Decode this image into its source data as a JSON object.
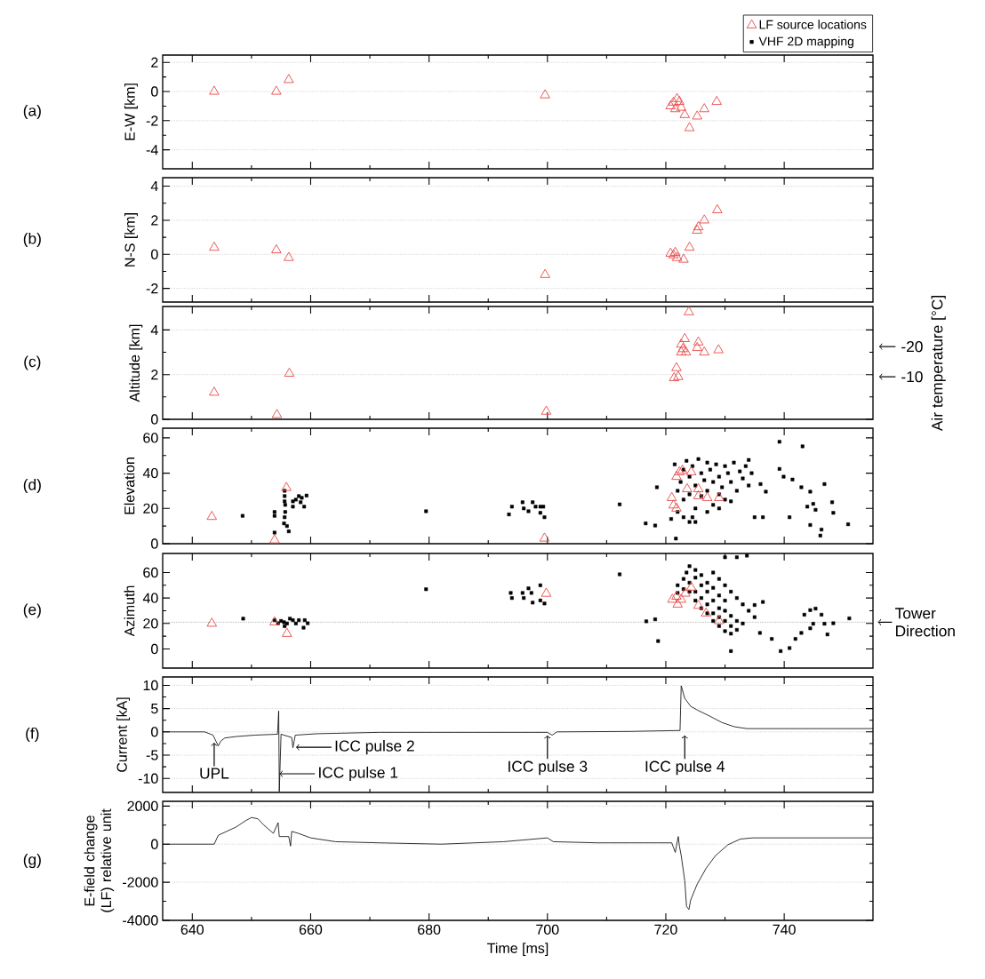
{
  "chart_data": [
    {
      "type": "scatter",
      "ylabel": "E-W [km]",
      "xlim": [
        635,
        755
      ],
      "xticks": [
        640,
        660,
        680,
        700,
        720,
        740
      ],
      "ylim": [
        -5.3,
        2.5
      ],
      "yticks": [
        -4,
        -2,
        0,
        2
      ],
      "grid": "y",
      "tick_labels": "y",
      "annotations": [
        "(a)"
      ],
      "series": [
        {
          "color": "#e8504f",
          "marker": "triangle",
          "x": [
            643.7,
            654.2,
            656.3,
            699.6,
            720.8,
            721.3,
            721.6,
            721.9,
            722.3,
            722.6,
            723.2,
            724.0,
            725.3,
            726.5,
            728.6
          ],
          "values": [
            0,
            0,
            0.8,
            -0.25,
            -1.0,
            -0.75,
            -1.2,
            -0.5,
            -0.7,
            -1.1,
            -1.6,
            -2.5,
            -1.7,
            -1.2,
            -0.7
          ]
        }
      ]
    },
    {
      "type": "scatter",
      "ylabel": "N-S [km]",
      "xlim": [
        635,
        755
      ],
      "xticks": [
        640,
        660,
        680,
        700,
        720,
        740
      ],
      "ylim": [
        -2.8,
        4.5
      ],
      "yticks": [
        -2,
        0,
        2,
        4
      ],
      "grid": "y",
      "tick_labels": "y",
      "annotations": [
        "(b)"
      ],
      "series": [
        {
          "color": "#e8504f",
          "marker": "triangle",
          "x": [
            643.7,
            654.2,
            656.3,
            699.6,
            720.8,
            721.3,
            721.6,
            721.9,
            723.0,
            724.0,
            725.3,
            725.5,
            726.5,
            728.7
          ],
          "values": [
            0.4,
            0.25,
            -0.2,
            -1.2,
            0.05,
            -0.05,
            0.1,
            -0.2,
            -0.3,
            0.4,
            1.4,
            1.6,
            2.0,
            2.6
          ]
        }
      ]
    },
    {
      "type": "scatter",
      "ylabel": "Altitude [km]",
      "xlim": [
        635,
        755
      ],
      "xticks": [
        640,
        660,
        680,
        700,
        720,
        740
      ],
      "ylim": [
        0,
        5.05
      ],
      "yticks": [
        0,
        2,
        4
      ],
      "grid": "y",
      "tick_labels": "y",
      "annotations": [
        "(c)"
      ],
      "y2label": "Air temperature [°C]",
      "y2lim": [
        4.1,
        -33.3
      ],
      "y2ticks": [
        -20,
        -10
      ],
      "series": [
        {
          "color": "#e8504f",
          "marker": "triangle",
          "x": [
            643.7,
            654.3,
            656.4,
            699.8,
            721.4,
            721.8,
            722.1,
            722.6,
            723.2,
            722.6,
            722.9,
            723.9,
            723.4,
            725.5,
            725.3,
            726.5,
            728.9
          ],
          "values": [
            1.2,
            0.2,
            2.05,
            0.35,
            1.85,
            2.3,
            1.9,
            3.35,
            3.6,
            3.0,
            3.15,
            4.8,
            3.0,
            3.45,
            3.2,
            3.0,
            3.1
          ]
        }
      ]
    },
    {
      "type": "scatter",
      "ylabel": "Elevation",
      "xlim": [
        635,
        755
      ],
      "xticks": [
        640,
        660,
        680,
        700,
        720,
        740
      ],
      "ylim": [
        0,
        65.5
      ],
      "yticks": [
        0,
        20,
        40,
        60
      ],
      "tick_labels": "y",
      "legend": "top right",
      "annotations": [
        "(d)"
      ],
      "series": [
        {
          "name": "VHF 2D mapping",
          "color": "#000000",
          "marker": "square",
          "x": [
            648.5,
            653.9,
            653.9,
            653.9,
            655.6,
            655.6,
            655.6,
            655.7,
            655.7,
            655.6,
            655.5,
            656.0,
            656.3,
            657.0,
            657.5,
            658.0,
            658.5,
            658.9,
            659.3,
            657.0,
            658.3,
            679.5,
            693.5,
            694.0,
            695.8,
            696.0,
            696.8,
            697.5,
            698.0,
            698.8,
            699.3,
            699.5,
            698.8,
            712.2,
            718.5,
            716.6,
            718.2,
            721.7,
            720.9,
            721.5,
            722.0,
            722.5,
            723.0,
            723.0,
            723.5,
            724.0,
            724.0,
            724.5,
            725.0,
            725.0,
            725.5,
            726.0,
            726.0,
            726.5,
            727.0,
            727.0,
            727.5,
            728.0,
            728.0,
            728.5,
            729.0,
            729.0,
            729.5,
            730.0,
            730.0,
            730.5,
            731.0,
            731.5,
            732.0,
            732.5,
            733.0,
            733.5,
            734.0,
            722.0,
            723.0,
            724.5,
            727.0,
            729.0,
            731.0,
            734.0,
            734.5,
            736.0,
            736.9,
            739.2,
            739.9,
            741.4,
            742.9,
            744.4,
            744.9,
            743.9,
            745.3,
            746.8,
            748.1,
            748.3,
            744.4,
            746.1,
            746.3,
            750.8,
            739.2,
            743.1,
            735.0,
            736.4,
            740.9,
            724.0,
            725.0
          ],
          "values": [
            15.8,
            6.3,
            15.8,
            18,
            30,
            27,
            24,
            22,
            18,
            15,
            11.5,
            10,
            7,
            24,
            25,
            27,
            26,
            21,
            27.3,
            21,
            23.5,
            18.4,
            16.6,
            21,
            23.5,
            20,
            18.4,
            23.5,
            21,
            21,
            21,
            15,
            17.5,
            22.3,
            32,
            11.5,
            10.3,
            2.9,
            14,
            45,
            30,
            35,
            42,
            25,
            47,
            38,
            28,
            44,
            33,
            20,
            48,
            40,
            27,
            36,
            46,
            30,
            42,
            35,
            22,
            45,
            38,
            28,
            32,
            44,
            25,
            40,
            35,
            46,
            30,
            41,
            37,
            44,
            33,
            18,
            15,
            15,
            18,
            20,
            24,
            47.5,
            40,
            33.8,
            29.5,
            42.4,
            38,
            36.4,
            32,
            29.5,
            22.6,
            21,
            19.2,
            33.8,
            23.5,
            17.5,
            10.6,
            4.6,
            8,
            11,
            57.8,
            55.2,
            15,
            15,
            15,
            12.3,
            12.3
          ]
        },
        {
          "name": "LF source locations",
          "color": "#e8504f",
          "marker": "triangle",
          "x": [
            643.3,
            653.9,
            655.9,
            699.5,
            722.3,
            722.8,
            724.3,
            721.8,
            723.6,
            725.5,
            727.0,
            729.0,
            721.0,
            721.3,
            721.8,
            725.5
          ],
          "values": [
            15.3,
            2,
            31.7,
            3,
            40.6,
            41.5,
            40.6,
            38,
            31,
            31,
            26,
            26,
            26,
            21.8,
            20,
            27
          ]
        }
      ]
    },
    {
      "type": "scatter",
      "ylabel": "Azimuth",
      "xlim": [
        635,
        755
      ],
      "xticks": [
        640,
        660,
        680,
        700,
        720,
        740
      ],
      "ylim": [
        -15,
        75
      ],
      "yticks": [
        0,
        20,
        40,
        60
      ],
      "tick_labels": "y",
      "annotations": [
        "(e)"
      ],
      "ref_lines": [
        {
          "axis": "y",
          "value": 21,
          "label": "Tower Direction",
          "line_style": "dotted",
          "color": "#888888"
        }
      ],
      "series": [
        {
          "color": "#000000",
          "marker": "square",
          "x": [
            648.6,
            653.9,
            654.5,
            655.0,
            655.5,
            655.6,
            656.0,
            656.5,
            657.0,
            657.5,
            658.0,
            658.8,
            659.5,
            659.0,
            679.5,
            693.8,
            694.0,
            695.8,
            696.0,
            696.8,
            697.5,
            698.8,
            699.5,
            698.8,
            697.3,
            712.2,
            716.7,
            718.2,
            718.7,
            731.0,
            732.0,
            733.7,
            735.0,
            736.4,
            735.9,
            739.4,
            740.9,
            741.9,
            742.9,
            744.4,
            744.9,
            743.4,
            744.4,
            745.3,
            746.3,
            746.8,
            747.3,
            748.3,
            751.0,
            737.9,
            730.0,
            722.0,
            723.0,
            723.5,
            724.0,
            725.0,
            724.0,
            725.0,
            726.0,
            726.0,
            727.0,
            727.0,
            728.0,
            728.0,
            729.0,
            729.0,
            730.0,
            730.0,
            731.0,
            731.0,
            732.0,
            732.0,
            733.0,
            725.0,
            726.0,
            727.0,
            728.0,
            729.0,
            730.0,
            724.0,
            723.0,
            722.0,
            725.0,
            726.0,
            727.0,
            728.0,
            729.0,
            730.0,
            731.0,
            728.0,
            729.0,
            730.0,
            731.0,
            732.0,
            733.0,
            734.0,
            735.0
          ],
          "values": [
            23.8,
            22.6,
            20.2,
            22,
            21,
            17.9,
            20,
            23.8,
            22.6,
            20,
            22.6,
            16.7,
            20.2,
            22.6,
            46.9,
            44,
            40,
            44,
            40,
            47.6,
            36.4,
            38.1,
            35.7,
            50,
            44,
            58.6,
            21.7,
            23.3,
            6.2,
            -1.7,
            72,
            73.3,
            34.5,
            36.9,
            12.6,
            -1.7,
            0.7,
            7.9,
            12.6,
            16.2,
            19.8,
            26.9,
            30.5,
            31.7,
            26.9,
            19.8,
            11.4,
            20.2,
            24,
            7.9,
            72,
            50,
            55,
            60,
            65,
            62,
            52,
            45,
            50,
            40,
            45,
            35,
            38,
            28,
            32,
            25,
            22,
            30,
            18,
            26,
            15,
            22,
            20,
            56,
            58,
            52,
            48,
            42,
            38,
            45,
            47,
            44,
            38,
            32,
            28,
            22,
            18,
            14,
            12,
            60,
            55,
            50,
            45,
            40,
            35,
            30,
            25
          ]
        },
        {
          "color": "#e8504f",
          "marker": "triangle",
          "x": [
            643.3,
            653.9,
            656.0,
            699.8,
            721.1,
            721.8,
            722.6,
            723.3,
            724.3,
            725.5,
            726.8,
            729.0,
            722.0
          ],
          "values": [
            20,
            21,
            12,
            43.5,
            38.8,
            41.2,
            38.8,
            43.6,
            48.3,
            34,
            28,
            22,
            35
          ]
        }
      ]
    },
    {
      "type": "line",
      "ylabel": "Current [kA]",
      "xlim": [
        635,
        755
      ],
      "xticks": [
        640,
        660,
        680,
        700,
        720,
        740
      ],
      "ylim": [
        -13,
        11.8
      ],
      "yticks": [
        -10,
        -5,
        0,
        5,
        10
      ],
      "grid": "y",
      "tick_labels": "y",
      "annotations": [
        "(f)",
        {
          "text": "UPL",
          "x": 643.7,
          "y": -2.3
        },
        {
          "text": "ICC pulse 1",
          "x": 654.7,
          "y": -9
        },
        {
          "text": "ICC pulse 2",
          "x": 657.5,
          "y": -3.3
        },
        {
          "text": "ICC pulse 3",
          "x": 700,
          "y": -0.7
        },
        {
          "text": "ICC pulse 4",
          "x": 723.2,
          "y": -0.7
        }
      ],
      "series": [
        {
          "color": "#000000",
          "x": [
            635,
            642.1,
            643.5,
            644.0,
            644.4,
            644.8,
            645.5,
            647.4,
            650.5,
            654.4,
            654.6,
            654.7,
            655.0,
            656.8,
            657.0,
            657.4,
            661.0,
            671.6,
            700.0,
            700.8,
            701.6,
            713.7,
            722.4,
            722.6,
            723.2,
            724.2,
            725.3,
            727.4,
            729.5,
            731.6,
            733.7,
            740.0,
            755
          ],
          "values": [
            0,
            0,
            -0.7,
            -2,
            -3,
            -2,
            -1.3,
            -1,
            -0.7,
            -0.5,
            4.5,
            -12.8,
            -0.5,
            -1.2,
            -3.4,
            -0.7,
            -0.4,
            -0.1,
            -0.1,
            -0.7,
            0,
            0.1,
            0.3,
            9.9,
            7.2,
            5.5,
            4.7,
            3.4,
            2,
            1.1,
            0.7,
            0.7,
            0.7
          ]
        }
      ]
    },
    {
      "type": "line",
      "ylabel": "E-field change (LF) relative unit",
      "xlabel": "Time [ms]",
      "xlim": [
        635,
        755
      ],
      "xticks": [
        640,
        660,
        680,
        700,
        720,
        740
      ],
      "ylim": [
        -4000,
        2250
      ],
      "yticks": [
        -4000,
        -2000,
        0,
        2000
      ],
      "grid": "y",
      "annotations": [
        "(g)"
      ],
      "series": [
        {
          "color": "#000000",
          "x": [
            635,
            643.7,
            644.4,
            645.8,
            647.4,
            649.0,
            650.0,
            651.1,
            652.1,
            653.7,
            654.5,
            654.7,
            656.3,
            656.6,
            656.8,
            657.9,
            660.0,
            664.2,
            671.6,
            682.1,
            692.6,
            700.0,
            701.0,
            708.4,
            721.0,
            721.6,
            722.1,
            722.3,
            722.6,
            723.2,
            723.5,
            723.9,
            724.2,
            725.3,
            726.8,
            728.4,
            730.5,
            732.6,
            734.7,
            755
          ],
          "values": [
            0,
            0,
            470,
            670,
            900,
            1230,
            1400,
            1330,
            1000,
            570,
            1130,
            400,
            400,
            -100,
            670,
            570,
            330,
            130,
            70,
            0,
            130,
            330,
            130,
            70,
            70,
            -430,
            400,
            -100,
            -600,
            -1930,
            -3270,
            -3430,
            -2930,
            -2100,
            -1270,
            -600,
            -30,
            270,
            330,
            330
          ]
        }
      ]
    }
  ]
}
